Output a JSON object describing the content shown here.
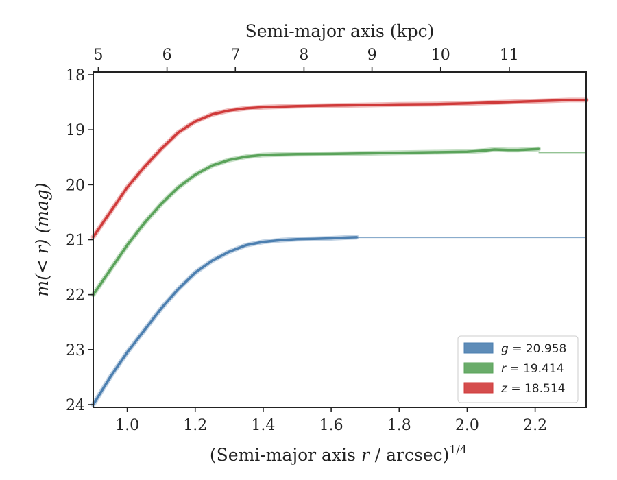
{
  "chart_data": {
    "type": "line",
    "xlabel": "(Semi-major axis r / arcsec)^{1/4}",
    "xlabel_parts": {
      "pre": "(Semi-major axis ",
      "var": "r",
      "post": " / arcsec)",
      "sup": "1/4"
    },
    "top_xlabel": "Semi-major axis (kpc)",
    "ylabel": "m(< r) (mag)",
    "ylabel_parts": {
      "pre": "m(",
      "lt": "< r",
      "post": ") (mag)"
    },
    "xlim": [
      0.9,
      2.35
    ],
    "ylim": [
      24.05,
      17.95
    ],
    "y_inverted": true,
    "x_ticks": [
      1.0,
      1.2,
      1.4,
      1.6,
      1.8,
      2.0,
      2.2
    ],
    "x_tick_labels": [
      "1.0",
      "1.2",
      "1.4",
      "1.6",
      "1.8",
      "2.0",
      "2.2"
    ],
    "y_ticks": [
      18,
      19,
      20,
      21,
      22,
      23,
      24
    ],
    "y_tick_labels": [
      "18",
      "19",
      "20",
      "21",
      "22",
      "23",
      "24"
    ],
    "top_ticks": [
      5,
      6,
      7,
      8,
      9,
      10,
      11
    ],
    "top_tick_labels": [
      "5",
      "6",
      "7",
      "8",
      "9",
      "10",
      "11"
    ],
    "top_tick_positions_x": [
      0.915,
      1.117,
      1.318,
      1.52,
      1.72,
      1.922,
      2.124
    ],
    "grid": false,
    "legend_position": "bottom-right",
    "series": [
      {
        "name": "g = 20.958",
        "legend_var": "g",
        "legend_value": "= 20.958",
        "color": "#4c7fb0",
        "asymptote": 20.958,
        "x": [
          0.9,
          0.95,
          1.0,
          1.05,
          1.1,
          1.15,
          1.2,
          1.25,
          1.3,
          1.35,
          1.4,
          1.45,
          1.5,
          1.55,
          1.6,
          1.65,
          1.675
        ],
        "y": [
          24.0,
          23.5,
          23.05,
          22.65,
          22.25,
          21.9,
          21.6,
          21.38,
          21.22,
          21.1,
          21.04,
          21.01,
          20.99,
          20.985,
          20.975,
          20.96,
          20.955
        ]
      },
      {
        "name": "r = 19.414",
        "legend_var": "r",
        "legend_value": "= 19.414",
        "color": "#5aa35a",
        "asymptote": 19.414,
        "x": [
          0.9,
          0.95,
          1.0,
          1.05,
          1.1,
          1.15,
          1.2,
          1.25,
          1.3,
          1.35,
          1.4,
          1.45,
          1.5,
          1.6,
          1.7,
          1.8,
          1.9,
          2.0,
          2.05,
          2.08,
          2.12,
          2.15,
          2.18,
          2.21
        ],
        "y": [
          22.0,
          21.55,
          21.1,
          20.7,
          20.35,
          20.05,
          19.82,
          19.65,
          19.55,
          19.49,
          19.46,
          19.45,
          19.445,
          19.44,
          19.43,
          19.42,
          19.41,
          19.4,
          19.38,
          19.36,
          19.37,
          19.37,
          19.36,
          19.35
        ]
      },
      {
        "name": "z = 18.514",
        "legend_var": "z",
        "legend_value": "= 18.514",
        "color": "#d03a3a",
        "asymptote": 18.514,
        "x": [
          0.9,
          0.95,
          1.0,
          1.05,
          1.1,
          1.15,
          1.2,
          1.25,
          1.3,
          1.35,
          1.4,
          1.45,
          1.5,
          1.6,
          1.7,
          1.8,
          1.9,
          2.0,
          2.1,
          2.2,
          2.25,
          2.3,
          2.35
        ],
        "y": [
          20.95,
          20.5,
          20.05,
          19.68,
          19.35,
          19.05,
          18.85,
          18.72,
          18.65,
          18.61,
          18.59,
          18.58,
          18.57,
          18.56,
          18.55,
          18.54,
          18.535,
          18.52,
          18.5,
          18.48,
          18.47,
          18.46,
          18.46
        ]
      }
    ]
  }
}
